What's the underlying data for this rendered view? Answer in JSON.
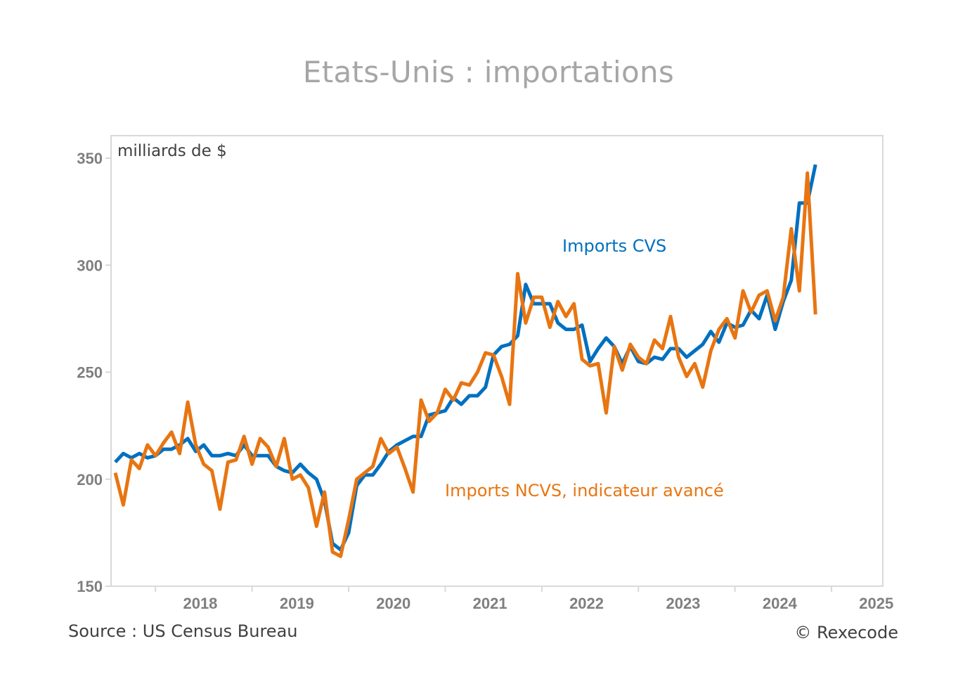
{
  "chart_data": {
    "type": "line",
    "title": "Etats-Unis : importations",
    "unit_label": "milliards de $",
    "source": "Source : US Census Bureau",
    "copyright": "© Rexecode",
    "ylim": [
      150,
      350
    ],
    "yticks": [
      150,
      200,
      250,
      300,
      350
    ],
    "xticks": [
      "2018",
      "2019",
      "2020",
      "2021",
      "2022",
      "2023",
      "2024",
      "2025"
    ],
    "x_start": "2017-08",
    "x_frequency": "monthly",
    "grid": false,
    "colors": {
      "cvs": "#0070c0",
      "ncvs": "#e87511",
      "axis": "#d9d9d9"
    },
    "series": [
      {
        "name": "Imports CVS",
        "values": [
          208,
          212,
          210,
          212,
          210,
          211,
          214,
          214,
          216,
          219,
          213,
          216,
          211,
          211,
          212,
          211,
          216,
          211,
          211,
          211,
          206,
          204,
          203,
          207,
          203,
          200,
          190,
          170,
          167,
          175,
          197,
          202,
          202,
          207,
          213,
          216,
          218,
          220,
          220,
          230,
          231,
          232,
          238,
          235,
          239,
          239,
          243,
          258,
          262,
          263,
          267,
          291,
          282,
          282,
          282,
          273,
          270,
          270,
          272,
          255,
          261,
          266,
          262,
          254,
          262,
          255,
          254,
          257,
          256,
          261,
          261,
          257,
          260,
          263,
          269,
          264,
          273,
          271,
          272,
          279,
          275,
          286,
          270,
          283,
          293,
          329,
          329,
          347
        ]
      },
      {
        "name": "Imports NCVS, indicateur avancé",
        "values": [
          203,
          188,
          209,
          205,
          216,
          211,
          217,
          222,
          212,
          236,
          216,
          207,
          204,
          186,
          208,
          209,
          220,
          207,
          219,
          215,
          206,
          219,
          200,
          202,
          196,
          178,
          194,
          166,
          164,
          181,
          200,
          203,
          206,
          219,
          212,
          215,
          205,
          194,
          237,
          227,
          231,
          242,
          237,
          245,
          244,
          250,
          259,
          258,
          248,
          235,
          296,
          273,
          285,
          285,
          271,
          283,
          276,
          282,
          256,
          253,
          254,
          231,
          262,
          251,
          263,
          257,
          254,
          265,
          261,
          276,
          257,
          248,
          254,
          243,
          260,
          270,
          275,
          266,
          288,
          278,
          286,
          288,
          274,
          285,
          317,
          288,
          343,
          277
        ]
      }
    ]
  }
}
